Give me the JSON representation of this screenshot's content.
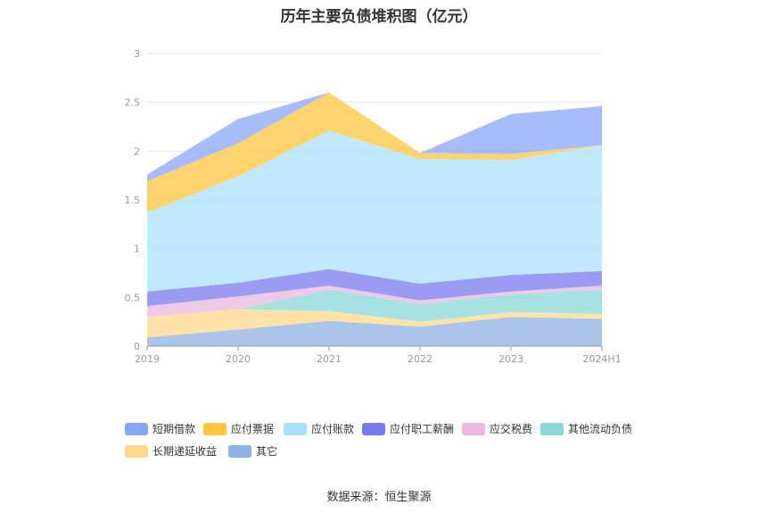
{
  "chart_data": {
    "type": "area",
    "stacked": true,
    "title": "历年主要负债堆积图（亿元）",
    "categories": [
      "2019",
      "2020",
      "2021",
      "2022",
      "2023",
      "2024H1"
    ],
    "ylim": [
      0,
      3
    ],
    "yticks": [
      "0",
      "0.5",
      "1",
      "1.5",
      "2",
      "2.5",
      "3"
    ],
    "grid": true,
    "legend_position": "bottom",
    "series": [
      {
        "name": "其它",
        "color": "#8fb0e3",
        "values": [
          0.09,
          0.17,
          0.26,
          0.2,
          0.3,
          0.28
        ]
      },
      {
        "name": "长期递延收益",
        "color": "#ffd98a",
        "values": [
          0.21,
          0.21,
          0.1,
          0.05,
          0.05,
          0.05
        ]
      },
      {
        "name": "其他流动负债",
        "color": "#88d8d8",
        "values": [
          0.0,
          0.0,
          0.22,
          0.18,
          0.18,
          0.25
        ]
      },
      {
        "name": "应交税费",
        "color": "#eab8e0",
        "values": [
          0.11,
          0.13,
          0.04,
          0.04,
          0.03,
          0.04
        ]
      },
      {
        "name": "应付职工薪酬",
        "color": "#7b79ef",
        "values": [
          0.15,
          0.14,
          0.17,
          0.17,
          0.17,
          0.15
        ]
      },
      {
        "name": "应付账款",
        "color": "#a9e1fb",
        "values": [
          0.81,
          1.09,
          1.42,
          1.28,
          1.18,
          1.29
        ]
      },
      {
        "name": "应付票据",
        "color": "#ffc53d",
        "values": [
          0.32,
          0.34,
          0.39,
          0.06,
          0.06,
          0.0
        ]
      },
      {
        "name": "短期借款",
        "color": "#8aa7f7",
        "values": [
          0.07,
          0.25,
          0.0,
          0.0,
          0.41,
          0.4
        ]
      }
    ],
    "legend_order": [
      "短期借款",
      "应付票据",
      "应付账款",
      "应付职工薪酬",
      "应交税费",
      "其他流动负债",
      "长期递延收益",
      "其它"
    ]
  },
  "source": "数据来源：恒生聚源"
}
